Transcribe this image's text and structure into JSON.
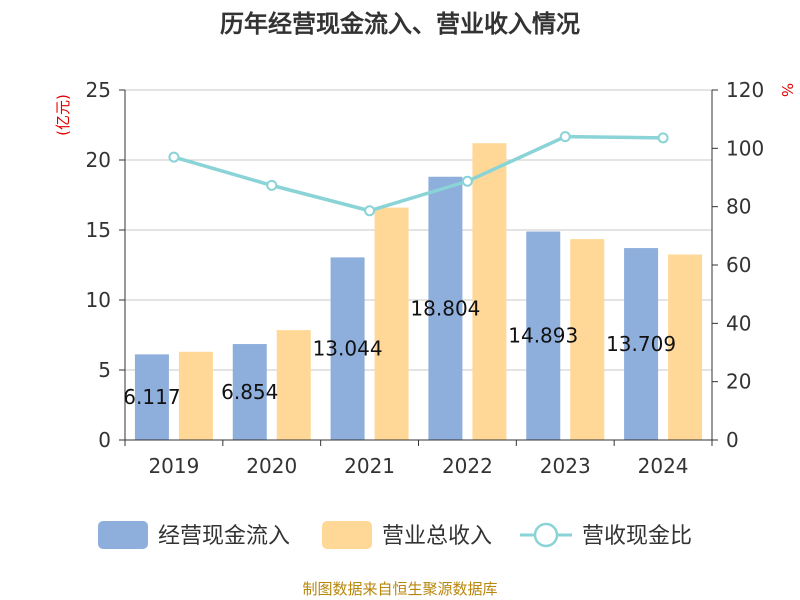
{
  "chart_data": {
    "type": "bar",
    "title": "历年经营现金流入、营业收入情况",
    "categories": [
      "2019",
      "2020",
      "2021",
      "2022",
      "2023",
      "2024"
    ],
    "series": [
      {
        "name": "经营现金流入",
        "type": "bar",
        "axis": "left",
        "color": "#8eaedc",
        "values": [
          6.117,
          6.854,
          13.044,
          18.804,
          14.893,
          13.709
        ]
      },
      {
        "name": "营业总收入",
        "type": "bar",
        "axis": "left",
        "color": "#ffd898",
        "values": [
          6.3,
          7.85,
          16.6,
          21.2,
          14.35,
          13.25
        ]
      },
      {
        "name": "营收现金比",
        "type": "line",
        "axis": "right",
        "color": "#8ad3d6",
        "values": [
          97,
          87.3,
          78.6,
          88.7,
          104,
          103.6
        ]
      }
    ],
    "data_labels": [
      "6.117",
      "6.854",
      "13.044",
      "18.804",
      "14.893",
      "13.709"
    ],
    "y_left": {
      "label": "(亿元)",
      "min": 0,
      "max": 25,
      "ticks": [
        0,
        5,
        10,
        15,
        20,
        25
      ]
    },
    "y_right": {
      "label": "%",
      "min": 0,
      "max": 120,
      "ticks": [
        0,
        20,
        40,
        60,
        80,
        100,
        120
      ]
    },
    "grid": true,
    "legend_position": "bottom",
    "source": "制图数据来自恒生聚源数据库"
  }
}
